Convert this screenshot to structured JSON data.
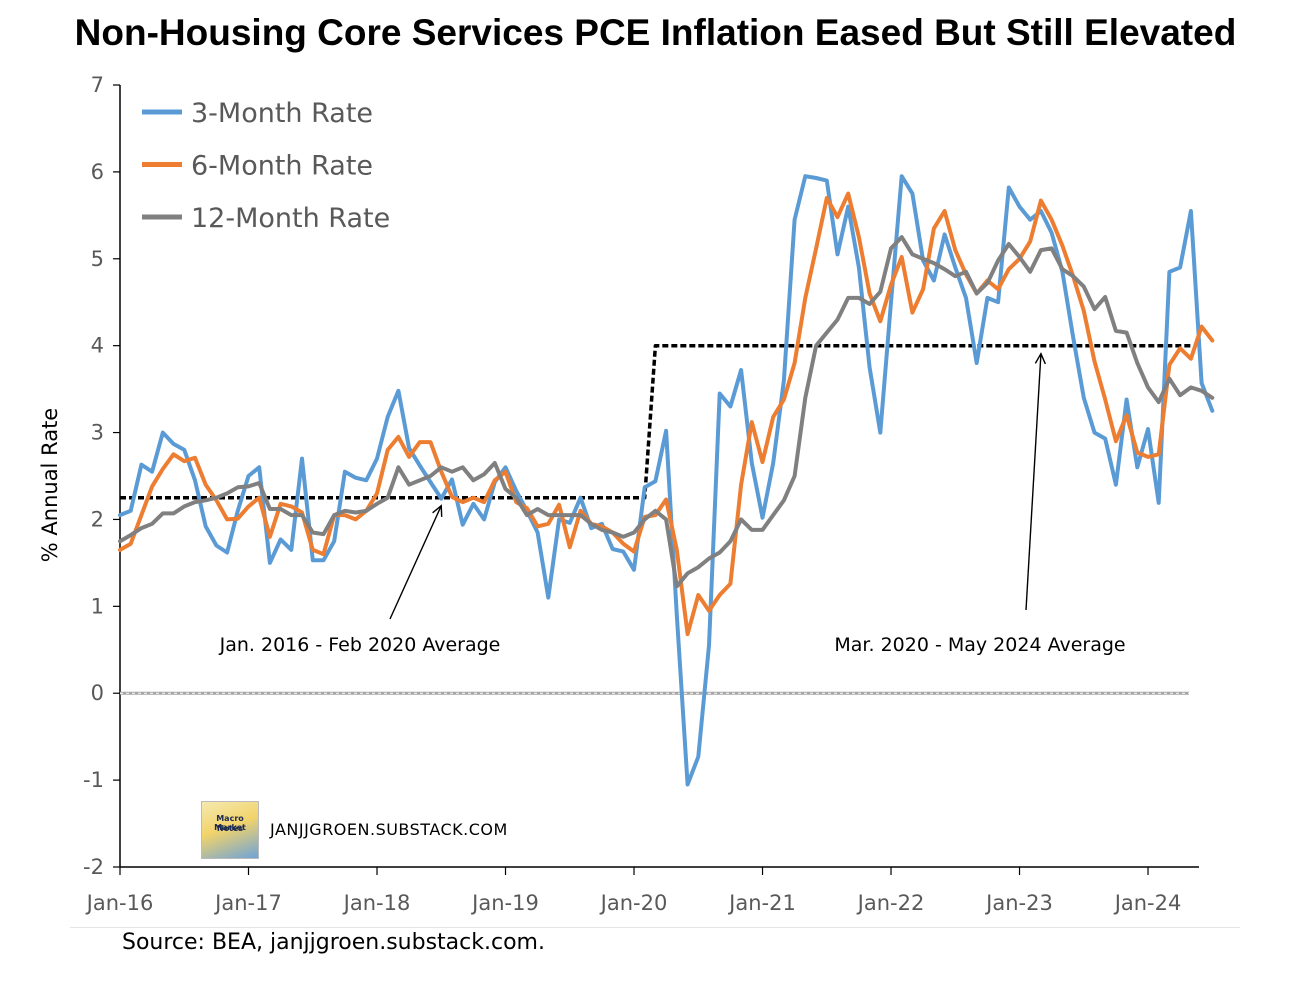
{
  "chart_data": {
    "type": "line",
    "title": "Non-Housing Core Services PCE Inflation Eased But Still Elevated",
    "ylabel": "% Annual Rate",
    "xlabel": "",
    "ylim": [
      -2,
      7
    ],
    "yticks": [
      -2,
      -1,
      0,
      1,
      2,
      3,
      4,
      5,
      6,
      7
    ],
    "xlim": [
      "2016-01",
      "2024-05"
    ],
    "xticks": [
      {
        "label": "Jan-16",
        "date": "2016-01"
      },
      {
        "label": "Jan-17",
        "date": "2017-01"
      },
      {
        "label": "Jan-18",
        "date": "2018-01"
      },
      {
        "label": "Jan-19",
        "date": "2019-01"
      },
      {
        "label": "Jan-20",
        "date": "2020-01"
      },
      {
        "label": "Jan-21",
        "date": "2021-01"
      },
      {
        "label": "Jan-22",
        "date": "2022-01"
      },
      {
        "label": "Jan-23",
        "date": "2023-01"
      },
      {
        "label": "Jan-24",
        "date": "2024-01"
      }
    ],
    "legend_position": "top-left",
    "grid": false,
    "x_start": "2016-01",
    "frequency": "monthly",
    "series": [
      {
        "name": "3-Month Rate",
        "color": "#5b9bd5",
        "values": [
          2.05,
          2.1,
          2.63,
          2.55,
          3.0,
          2.87,
          2.8,
          2.45,
          1.92,
          1.7,
          1.62,
          2.1,
          2.5,
          2.6,
          1.5,
          1.77,
          1.65,
          2.7,
          1.53,
          1.53,
          1.75,
          2.55,
          2.48,
          2.45,
          2.7,
          3.18,
          3.48,
          2.82,
          2.62,
          2.43,
          2.24,
          2.46,
          1.94,
          2.18,
          2.0,
          2.43,
          2.6,
          2.33,
          2.1,
          1.85,
          1.1,
          2.0,
          1.96,
          2.25,
          1.9,
          1.95,
          1.66,
          1.63,
          1.42,
          2.37,
          2.44,
          3.02,
          0.9,
          -1.05,
          -0.73,
          0.55,
          3.45,
          3.3,
          3.72,
          2.65,
          2.02,
          2.65,
          3.6,
          5.45,
          5.95,
          5.93,
          5.9,
          5.05,
          5.6,
          4.9,
          3.75,
          3.0,
          4.5,
          5.95,
          5.75,
          4.98,
          4.75,
          5.28,
          4.9,
          4.55,
          3.8,
          4.55,
          4.5,
          5.82,
          5.6,
          5.45,
          5.55,
          5.3,
          4.85,
          4.1,
          3.4,
          3.0,
          2.93,
          2.4,
          3.38,
          2.6,
          3.04,
          2.19,
          4.85,
          4.9,
          5.55,
          3.57,
          3.25
        ]
      },
      {
        "name": "6-Month Rate",
        "color": "#ed7d31",
        "values": [
          1.65,
          1.72,
          2.05,
          2.38,
          2.58,
          2.75,
          2.67,
          2.71,
          2.4,
          2.22,
          2.0,
          2.01,
          2.15,
          2.25,
          1.8,
          2.18,
          2.15,
          2.08,
          1.65,
          1.6,
          2.05,
          2.05,
          2.0,
          2.1,
          2.3,
          2.8,
          2.95,
          2.72,
          2.89,
          2.89,
          2.55,
          2.26,
          2.2,
          2.25,
          2.2,
          2.45,
          2.55,
          2.2,
          2.13,
          1.92,
          1.95,
          2.17,
          1.68,
          2.1,
          1.95,
          1.92,
          1.85,
          1.72,
          1.63,
          2.03,
          2.05,
          2.23,
          1.65,
          0.68,
          1.13,
          0.95,
          1.13,
          1.26,
          2.4,
          3.12,
          2.66,
          3.18,
          3.38,
          3.8,
          4.55,
          5.12,
          5.7,
          5.48,
          5.75,
          5.25,
          4.6,
          4.28,
          4.7,
          5.02,
          4.38,
          4.65,
          5.35,
          5.55,
          5.1,
          4.82,
          4.6,
          4.75,
          4.65,
          4.88,
          5.0,
          5.2,
          5.67,
          5.45,
          5.15,
          4.8,
          4.4,
          3.82,
          3.38,
          2.9,
          3.2,
          2.77,
          2.72,
          2.75,
          3.78,
          3.97,
          3.85,
          4.22,
          4.06
        ]
      },
      {
        "name": "12-Month Rate",
        "color": "#808080",
        "values": [
          1.75,
          1.82,
          1.9,
          1.95,
          2.07,
          2.07,
          2.15,
          2.2,
          2.22,
          2.25,
          2.3,
          2.37,
          2.38,
          2.42,
          2.12,
          2.12,
          2.05,
          2.05,
          1.85,
          1.83,
          2.05,
          2.1,
          2.08,
          2.1,
          2.18,
          2.25,
          2.6,
          2.4,
          2.45,
          2.5,
          2.6,
          2.55,
          2.6,
          2.45,
          2.52,
          2.65,
          2.35,
          2.25,
          2.05,
          2.12,
          2.05,
          2.05,
          2.05,
          2.05,
          1.95,
          1.88,
          1.85,
          1.8,
          1.85,
          2.0,
          2.1,
          2.0,
          1.23,
          1.38,
          1.45,
          1.55,
          1.62,
          1.75,
          2.0,
          1.88,
          1.88,
          2.05,
          2.22,
          2.5,
          3.4,
          4.0,
          4.15,
          4.3,
          4.55,
          4.55,
          4.48,
          4.62,
          5.12,
          5.25,
          5.05,
          5.0,
          4.95,
          4.88,
          4.8,
          4.85,
          4.6,
          4.72,
          4.98,
          5.17,
          5.02,
          4.85,
          5.1,
          5.12,
          4.88,
          4.8,
          4.68,
          4.42,
          4.56,
          4.17,
          4.15,
          3.8,
          3.52,
          3.35,
          3.62,
          3.43,
          3.52,
          3.48,
          3.4
        ]
      },
      {
        "name": "Jan. 2016 - Feb 2020 Average",
        "color": "#000000",
        "dashed": true,
        "points": [
          {
            "date": "2016-01",
            "value": 2.25
          },
          {
            "date": "2020-02",
            "value": 2.25
          },
          {
            "date": "2020-03",
            "value": 4.0
          },
          {
            "date": "2024-05",
            "value": 4.0
          }
        ]
      }
    ],
    "annotations": [
      {
        "text": "Jan. 2016 - Feb 2020 Average",
        "arrow_to_date": "2018-07",
        "arrow_to_value": 2.25
      },
      {
        "text": "Mar. 2020 - May 2024 Average",
        "arrow_to_date": "2023-03",
        "arrow_to_value": 4.0
      }
    ],
    "zero_line": true
  },
  "source_note": "Source: BEA, janjjgroen.substack.com.",
  "watermark": {
    "text": "JANJJGROEN.SUBSTACK.COM",
    "logo_text": [
      "Macro Market",
      "Notes"
    ]
  }
}
